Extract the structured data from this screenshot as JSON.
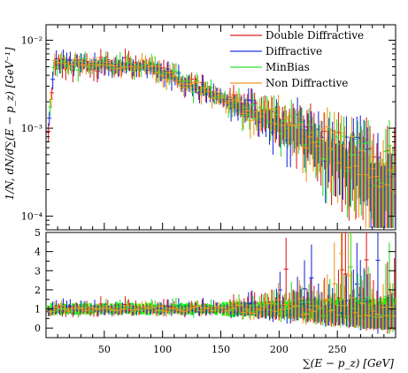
{
  "chart_data": {
    "type": "scatter",
    "title": "",
    "ylabel": "1/N, dN/d∑(E − p_z) [GeV⁻¹]",
    "xlabel": "∑(E − p_z) [GeV]",
    "xlim": [
      0,
      300
    ],
    "ylim": [
      7e-05,
      0.015
    ],
    "yscale": "log",
    "ratio_ylim": [
      -0.5,
      5
    ],
    "x_ticks": [
      "50",
      "100",
      "150",
      "200",
      "250"
    ],
    "x_tick_values": [
      50,
      100,
      150,
      200,
      250
    ],
    "y_ticks": [
      "10⁻²",
      "10⁻³",
      "10⁻⁴"
    ],
    "y_tick_values": [
      0.01,
      0.001,
      0.0001
    ],
    "ratio_ticks": [
      "0",
      "1",
      "2",
      "3",
      "4",
      "5"
    ],
    "ratio_tick_values": [
      0,
      1,
      2,
      3,
      4,
      5
    ],
    "legend_position": "top-right",
    "legend": [
      "Double Diffractive",
      "Diffractive",
      "MinBias",
      "Non Diffractive"
    ],
    "series": [
      {
        "name": "Double Diffractive",
        "color": "#dd2222"
      },
      {
        "name": "Diffractive",
        "color": "#2233dd"
      },
      {
        "name": "MinBias",
        "color": "#33dd33"
      },
      {
        "name": "Non Diffractive",
        "color": "#ee9922"
      }
    ],
    "band_color": "#00ff00"
  }
}
